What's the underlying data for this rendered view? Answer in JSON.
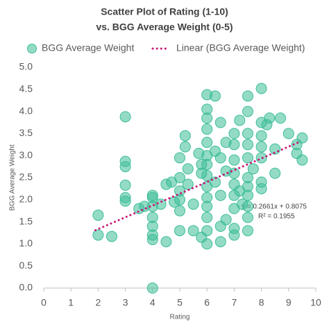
{
  "chart_data": {
    "type": "scatter",
    "title": [
      "Scatter Plot of Rating (1-10)",
      "vs. BGG Average Weight (0-5)"
    ],
    "x_label": "Rating",
    "y_label": "BGG Average Weight",
    "xlim": [
      0,
      10
    ],
    "ylim": [
      0,
      5
    ],
    "xticks": [
      0,
      1,
      2,
      3,
      4,
      5,
      6,
      7,
      8,
      9,
      10
    ],
    "yticks": [
      {
        "value": 0,
        "label": "0.0"
      },
      0.5,
      {
        "value": 1,
        "label": "1.0"
      },
      1.5,
      {
        "value": 2,
        "label": "2.0"
      },
      2.5,
      {
        "value": 3,
        "label": "3.0"
      },
      3.5,
      {
        "value": 4,
        "label": "4.0"
      },
      4.5,
      {
        "value": 5,
        "label": "5.0"
      }
    ],
    "grid": false,
    "series": [
      {
        "name": "BGG Average Weight",
        "color": "#3cbd98",
        "x": [
          2,
          2,
          2.5,
          3,
          3,
          3,
          3,
          3,
          3,
          3.5,
          3.7,
          4,
          4,
          4,
          4,
          4,
          4,
          4,
          4,
          4.3,
          4.5,
          4.5,
          4.7,
          4.8,
          5,
          5,
          5,
          5,
          5,
          5.2,
          5.2,
          5,
          5.3,
          5.3,
          5.5,
          5.5,
          5.7,
          5.8,
          5.8,
          6,
          6,
          6,
          6,
          6,
          6,
          6,
          6,
          6,
          6,
          6,
          6,
          6,
          6,
          5.8,
          6.3,
          6.3,
          6.3,
          6.5,
          6.5,
          6.5,
          6.5,
          6.5,
          6.7,
          6.7,
          6.7,
          7,
          7,
          7,
          7,
          7,
          7,
          7,
          7,
          7,
          7.2,
          7.2,
          7.3,
          7.5,
          7.5,
          7.5,
          7.5,
          7.5,
          7.5,
          7.5,
          7.5,
          7.5,
          7.5,
          7.5,
          7.7,
          8,
          8,
          8,
          8,
          8,
          8,
          8,
          8.2,
          8.3,
          8.5,
          8.5,
          8.7,
          9,
          9.3,
          9.5,
          9.5,
          9.3
        ],
        "values": [
          1.65,
          1.2,
          1.17,
          3.88,
          2.87,
          2.75,
          2.33,
          2.05,
          1.97,
          1.8,
          1.85,
          2.1,
          2.05,
          1.85,
          1.6,
          1.4,
          1.2,
          1.1,
          0,
          1.9,
          2.35,
          1.05,
          2.4,
          1.95,
          2.5,
          2.2,
          2,
          1.75,
          1.3,
          3.45,
          3.2,
          2.95,
          2.7,
          2.35,
          1.3,
          1.9,
          3.05,
          2.6,
          2.8,
          4.38,
          4.05,
          3.85,
          3.6,
          3.3,
          3,
          2.8,
          2.55,
          2.3,
          2.05,
          1.85,
          1.6,
          1.3,
          1,
          1.15,
          4.35,
          3.1,
          2.4,
          3.75,
          2.95,
          2.1,
          1.4,
          1.05,
          3.3,
          2.65,
          1.55,
          3.5,
          3.25,
          2.9,
          2.6,
          2.35,
          2.1,
          1.8,
          1.35,
          1.2,
          3.8,
          2.2,
          1.9,
          4,
          3.5,
          3.25,
          2.95,
          2.5,
          2.3,
          2.1,
          1.85,
          1.6,
          1.3,
          4.35,
          2.7,
          4.52,
          3.75,
          3.45,
          3.2,
          2.95,
          2.4,
          2.25,
          3.7,
          3.85,
          2.6,
          3.15,
          3.85,
          3.5,
          3.25,
          3.4,
          2.9,
          3.05
        ]
      }
    ],
    "trendline": {
      "name": "Linear (BGG Average Weight)",
      "color": "#c8177a",
      "x": [
        1.9,
        9.4
      ],
      "values": [
        1.31,
        3.31
      ],
      "equation": "y = 0.2661x + 0.8075",
      "r_squared": "R² = 0.1955"
    }
  }
}
